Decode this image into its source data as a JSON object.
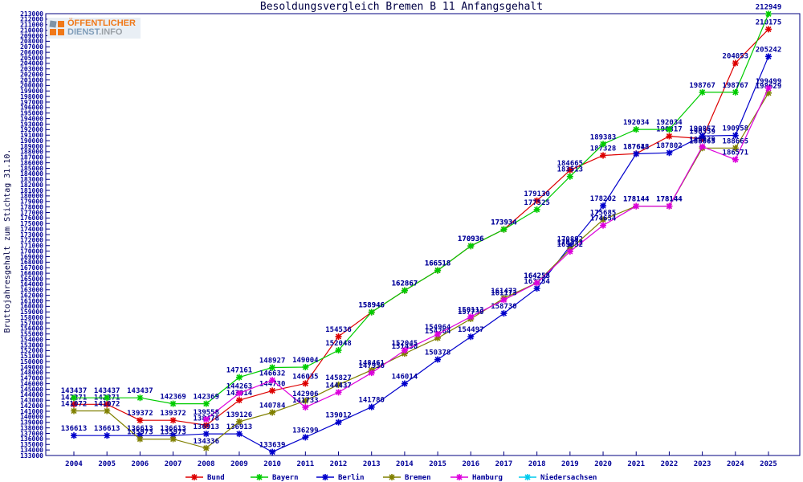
{
  "header": {
    "title": "Besoldungsvergleich Bremen B 11 Anfangsgehalt"
  },
  "logo": {
    "line1": "ÖFFENTLICHER",
    "line2_a": "DIENST",
    "line2_b": ".INFO",
    "accent_color": "#f07818",
    "gray_color": "#7f9db9"
  },
  "chart_data": {
    "type": "line",
    "title": "Besoldungsvergleich Bremen B 11 Anfangsgehalt",
    "xlabel": "",
    "ylabel": "Bruttojahresgehalt zum Stichtag 31.10.",
    "ylim": [
      133000,
      213000
    ],
    "ytick_step": 1000,
    "grid": false,
    "legend_position": "bottom",
    "text_color": "#000099",
    "border_color": "#000080",
    "x": [
      2004,
      2005,
      2006,
      2007,
      2008,
      2009,
      2010,
      2011,
      2012,
      2013,
      2014,
      2015,
      2016,
      2017,
      2018,
      2019,
      2020,
      2021,
      2022,
      2023,
      2024,
      2025
    ],
    "series": [
      {
        "name": "Bund",
        "color": "#dd0000",
        "values": [
          142271,
          142271,
          139372,
          139372,
          138478,
          143014,
          144730,
          146035,
          154536,
          158946,
          162867,
          166518,
          170936,
          173934,
          179130,
          184665,
          187328,
          187648,
          190817,
          190359,
          204053,
          210175
        ]
      },
      {
        "name": "Bayern",
        "color": "#00cc00",
        "values": [
          143437,
          143437,
          143437,
          142369,
          142369,
          147161,
          148927,
          149004,
          152048,
          158946,
          162867,
          166518,
          170936,
          173934,
          177525,
          183513,
          189383,
          192034,
          192034,
          198767,
          198767,
          212949
        ]
      },
      {
        "name": "Berlin",
        "color": "#0000cc",
        "values": [
          136613,
          136613,
          136613,
          136613,
          136913,
          136913,
          133639,
          136299,
          139012,
          141780,
          146014,
          150378,
          154497,
          158730,
          163254,
          170892,
          178202,
          187618,
          187802,
          190857,
          190958,
          205242
        ]
      },
      {
        "name": "Bremen",
        "color": "#808000",
        "values": [
          141072,
          141072,
          135973,
          135973,
          134336,
          139126,
          140784,
          142906,
          145827,
          148461,
          151450,
          154264,
          157730,
          161473,
          164258,
          170332,
          175685,
          178144,
          178144,
          188665,
          188665,
          198629
        ]
      },
      {
        "name": "Hamburg",
        "color": "#dd00dd",
        "values": [
          null,
          null,
          null,
          null,
          139558,
          144263,
          146632,
          141733,
          144437,
          147956,
          152045,
          154964,
          158113,
          161173,
          164255,
          169932,
          174654,
          178144,
          178144,
          188929,
          186571,
          199499
        ]
      },
      {
        "name": "Niedersachsen",
        "color": "#00ccee",
        "values": [
          null,
          null,
          null,
          null,
          null,
          null,
          null,
          null,
          null,
          null,
          null,
          null,
          null,
          null,
          null,
          null,
          null,
          null,
          null,
          null,
          null,
          null
        ],
        "note": "legend entry shown; line not visible in plot"
      }
    ]
  }
}
